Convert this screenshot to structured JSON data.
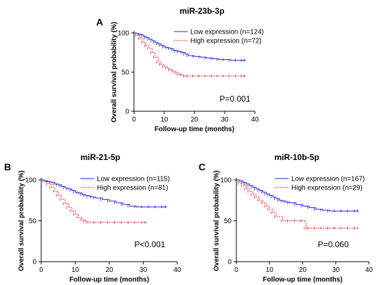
{
  "colors": {
    "low": "#1f1fd6",
    "high": "#e02020",
    "axis": "#000000"
  },
  "chart_data": [
    {
      "type": "line",
      "panel": "A",
      "title": "miR-23b-3p",
      "xlabel": "Follow-up time (months)",
      "ylabel": "Overall survival probability (%)",
      "xlim": [
        0,
        40
      ],
      "ylim": [
        0,
        100
      ],
      "xticks": [
        "0",
        "10",
        "20",
        "30",
        "40"
      ],
      "yticks": [
        "0",
        "50",
        "100"
      ],
      "pvalue": "P=0.001",
      "legend_position": "top-right",
      "series": [
        {
          "name": "Low expression (n=124)",
          "style": "solid",
          "color": "low",
          "x": [
            0,
            1,
            2,
            3,
            4,
            5,
            6,
            7,
            8,
            9,
            10,
            11,
            12,
            13,
            14,
            15,
            16,
            17,
            18,
            20,
            22,
            24,
            26,
            28,
            30,
            32,
            34,
            36,
            37
          ],
          "y": [
            100,
            99,
            98,
            96,
            94,
            92,
            90,
            88,
            86,
            84,
            82,
            81,
            80,
            78,
            77,
            76,
            75,
            73,
            71,
            70,
            69,
            68,
            67,
            66,
            66,
            65,
            65,
            65,
            65
          ]
        },
        {
          "name": "High expression (n=72)",
          "style": "dashed",
          "color": "high",
          "x": [
            0,
            1,
            2,
            3,
            4,
            5,
            6,
            7,
            8,
            9,
            10,
            11,
            12,
            13,
            14,
            15,
            16,
            17,
            18,
            20,
            22,
            24,
            26,
            28,
            30,
            32,
            34,
            36,
            37
          ],
          "y": [
            100,
            97,
            93,
            88,
            84,
            80,
            75,
            69,
            63,
            60,
            57,
            55,
            53,
            51,
            49,
            47,
            46,
            45,
            45,
            45,
            45,
            45,
            45,
            45,
            45,
            45,
            45,
            45,
            45
          ]
        }
      ]
    },
    {
      "type": "line",
      "panel": "B",
      "title": "miR-21-5p",
      "xlabel": "Follow-up time (months)",
      "ylabel": "Overall survival probability (%)",
      "xlim": [
        0,
        40
      ],
      "ylim": [
        0,
        100
      ],
      "xticks": [
        "0",
        "10",
        "20",
        "30",
        "40"
      ],
      "yticks": [
        "0",
        "50",
        "100"
      ],
      "pvalue": "P<0.001",
      "legend_position": "top-right",
      "series": [
        {
          "name": "Low expression (n=115)",
          "style": "solid",
          "color": "low",
          "x": [
            0,
            1,
            2,
            3,
            4,
            5,
            6,
            7,
            8,
            9,
            10,
            11,
            12,
            13,
            14,
            15,
            16,
            18,
            20,
            22,
            24,
            26,
            28,
            30,
            32,
            34,
            36,
            37
          ],
          "y": [
            100,
            99,
            98,
            97,
            95,
            94,
            92,
            90,
            89,
            87,
            85,
            84,
            82,
            81,
            80,
            79,
            78,
            76,
            74,
            72,
            70,
            68,
            67,
            67,
            67,
            67,
            67,
            67
          ]
        },
        {
          "name": "High expression (n=81)",
          "style": "dashed",
          "color": "high",
          "x": [
            0,
            1,
            2,
            3,
            4,
            5,
            6,
            7,
            8,
            9,
            10,
            11,
            12,
            13,
            14,
            16,
            18,
            20,
            22,
            24,
            26,
            28,
            30,
            31
          ],
          "y": [
            100,
            98,
            95,
            91,
            86,
            81,
            76,
            71,
            66,
            62,
            58,
            54,
            51,
            49,
            48,
            48,
            48,
            48,
            48,
            48,
            48,
            48,
            48,
            48
          ]
        }
      ]
    },
    {
      "type": "line",
      "panel": "C",
      "title": "miR-10b-5p",
      "xlabel": "Follow-up time (months)",
      "ylabel": "Overall survival probability (%)",
      "xlim": [
        0,
        40
      ],
      "ylim": [
        0,
        100
      ],
      "xticks": [
        "0",
        "10",
        "20",
        "30",
        "40"
      ],
      "yticks": [
        "0",
        "50",
        "100"
      ],
      "pvalue": "P=0.060",
      "legend_position": "top-right",
      "series": [
        {
          "name": "Low expression (n=167)",
          "style": "solid",
          "color": "low",
          "x": [
            0,
            1,
            2,
            3,
            4,
            5,
            6,
            7,
            8,
            9,
            10,
            11,
            12,
            13,
            14,
            15,
            16,
            18,
            20,
            22,
            24,
            26,
            28,
            30,
            32,
            34,
            36,
            37
          ],
          "y": [
            100,
            99,
            97,
            95,
            93,
            91,
            89,
            87,
            85,
            83,
            81,
            79,
            77,
            75,
            74,
            73,
            72,
            70,
            68,
            66,
            64,
            63,
            62,
            62,
            62,
            62,
            62,
            62
          ]
        },
        {
          "name": "High expression (n=29)",
          "style": "dashed",
          "color": "high",
          "x": [
            0,
            1,
            2,
            3,
            4,
            5,
            6,
            7,
            8,
            9,
            10,
            11,
            12,
            14,
            16,
            18,
            20,
            21,
            22,
            24,
            26,
            28,
            30,
            32,
            34,
            36,
            37
          ],
          "y": [
            100,
            96,
            93,
            89,
            86,
            82,
            79,
            75,
            72,
            68,
            64,
            60,
            55,
            50,
            50,
            50,
            50,
            41,
            41,
            41,
            41,
            41,
            41,
            41,
            41,
            41,
            41
          ]
        }
      ]
    }
  ]
}
